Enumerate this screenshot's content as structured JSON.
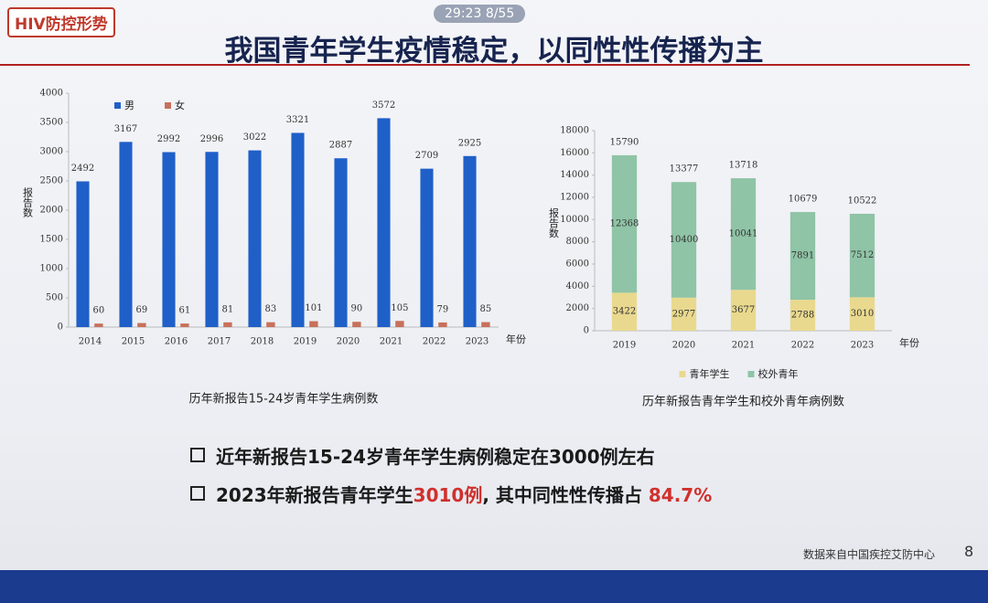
{
  "slide": {
    "tag": "HIV防控形势",
    "timer": "29:23",
    "page_count": "8/55",
    "title": "我国青年学生疫情稳定，以同性性传播为主",
    "bullet_1": "近年新报告15-24岁青年学生病例稳定在3000例左右",
    "bullet_2": [
      "2023年新报告青年学生",
      "3010例",
      ", 其中同性性传播占 ",
      "84.7%"
    ],
    "source": "数据来自中国疾控艾防中心",
    "page": "8"
  },
  "chart_data": [
    {
      "type": "bar",
      "caption": "历年新报告15-24岁青年学生病例数",
      "y_label": "报告数",
      "x_label": "年份",
      "categories": [
        "2014",
        "2015",
        "2016",
        "2017",
        "2018",
        "2019",
        "2020",
        "2021",
        "2022",
        "2023"
      ],
      "series": [
        {
          "name": "男",
          "color": "#1f5fc8",
          "values": [
            2492,
            3167,
            2992,
            2996,
            3022,
            3321,
            2887,
            3572,
            2709,
            2925
          ]
        },
        {
          "name": "女",
          "color": "#c8705a",
          "values": [
            60,
            69,
            61,
            81,
            83,
            101,
            90,
            105,
            79,
            85
          ]
        }
      ],
      "ylim": [
        0,
        4000
      ],
      "yticks": [
        0,
        500,
        1000,
        1500,
        2000,
        2500,
        3000,
        3500,
        4000
      ],
      "stacked": false,
      "legend": "top-left",
      "grid": false
    },
    {
      "type": "bar",
      "caption": "历年新报告青年学生和校外青年病例数",
      "y_label": "报告数",
      "x_label": "年份",
      "categories": [
        "2019",
        "2020",
        "2021",
        "2022",
        "2023"
      ],
      "series": [
        {
          "name": "青年学生",
          "color": "#e9d98e",
          "values": [
            3422,
            2977,
            3677,
            2788,
            3010
          ]
        },
        {
          "name": "校外青年",
          "color": "#8fc4a6",
          "values": [
            12368,
            10400,
            10041,
            7891,
            7512
          ]
        }
      ],
      "total_labels": [
        15790,
        13377,
        13718,
        10679,
        10522
      ],
      "ylim": [
        0,
        18000
      ],
      "yticks": [
        0,
        2000,
        4000,
        6000,
        8000,
        10000,
        12000,
        14000,
        16000,
        18000
      ],
      "stacked": true,
      "legend": "bottom",
      "grid": false
    }
  ]
}
